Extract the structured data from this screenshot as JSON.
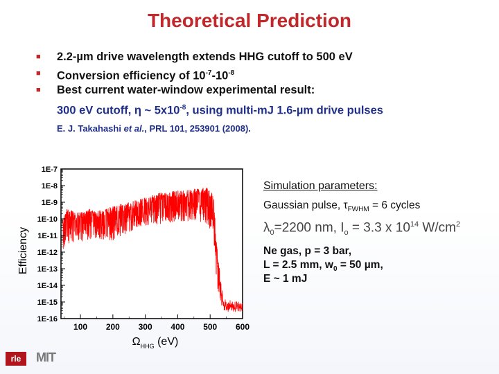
{
  "slide": {
    "title": "Theoretical Prediction",
    "bullets": [
      {
        "pre": "2.2-µm drive wavelength extends HHG cutoff to 500 eV"
      },
      {
        "pre": "Conversion efficiency of 10",
        "sup1": "-7",
        "mid": "-10",
        "sup2": "-8"
      },
      {
        "pre": "Best current water-window experimental result:"
      }
    ],
    "sub_line": {
      "pre": "300 eV cutoff, η ~ 5x10",
      "sup": "-8",
      "post": ", using multi-mJ 1.6-µm drive pulses"
    },
    "reference": {
      "pre": "E. J. Takahashi ",
      "em": "et al.",
      "post": ", PRL 101, 253901 (2008)."
    },
    "bullet_color": "#c0282b",
    "title_color": "#c0282b",
    "sub_color": "#1f2f8a"
  },
  "params": {
    "heading": "Simulation parameters:",
    "pulse": {
      "pre": "Gaussian pulse, τ",
      "sub": "FWHM",
      "post": " = 6 cycles"
    },
    "lambda_line": {
      "pre": "λ",
      "sub1": "0",
      "mid": "=2200 nm, I",
      "sub2": "o",
      "mid2": " = 3.3 x 10",
      "sup": "14",
      "post": " W/cm",
      "sup2": "2"
    },
    "gas": "Ne gas, p = 3 bar,",
    "length": {
      "pre": "L = 2.5 mm, w",
      "sub": "0",
      "post": " = 50 µm,"
    },
    "energy": "E ~ 1 mJ"
  },
  "logos": {
    "rle": "rle",
    "mit": "MIT"
  },
  "chart_data": {
    "type": "line",
    "xlabel": {
      "main": "Ω",
      "sub": "HHG",
      "unit": " (eV)"
    },
    "ylabel": "Efficiency",
    "xlim": [
      40,
      600
    ],
    "ylim_log10": [
      -16,
      -7
    ],
    "xticks": [
      100,
      200,
      300,
      400,
      500,
      600
    ],
    "yticks": [
      "1E-7",
      "1E-8",
      "1E-9",
      "1E-10",
      "1E-11",
      "1E-12",
      "1E-13",
      "1E-14",
      "1E-15",
      "1E-16"
    ],
    "series": [
      {
        "color": "#ff0000",
        "envelope_upper": [
          [
            45,
            -10.0
          ],
          [
            60,
            -9.3
          ],
          [
            80,
            -9.6
          ],
          [
            100,
            -9.6
          ],
          [
            130,
            -9.4
          ],
          [
            160,
            -9.5
          ],
          [
            200,
            -9.2
          ],
          [
            250,
            -9.0
          ],
          [
            300,
            -8.7
          ],
          [
            350,
            -8.4
          ],
          [
            400,
            -8.3
          ],
          [
            450,
            -8.2
          ],
          [
            490,
            -8.1
          ],
          [
            510,
            -8.4
          ],
          [
            520,
            -11.5
          ],
          [
            540,
            -14.8
          ],
          [
            600,
            -15.0
          ]
        ],
        "envelope_lower": [
          [
            45,
            -12.0
          ],
          [
            60,
            -11.5
          ],
          [
            80,
            -11.5
          ],
          [
            100,
            -11.4
          ],
          [
            150,
            -11.2
          ],
          [
            200,
            -11.3
          ],
          [
            250,
            -10.8
          ],
          [
            300,
            -10.4
          ],
          [
            350,
            -10.3
          ],
          [
            400,
            -10.2
          ],
          [
            450,
            -10.1
          ],
          [
            490,
            -10.3
          ],
          [
            510,
            -11.0
          ],
          [
            520,
            -14.0
          ],
          [
            540,
            -15.6
          ],
          [
            600,
            -15.6
          ]
        ]
      }
    ]
  }
}
